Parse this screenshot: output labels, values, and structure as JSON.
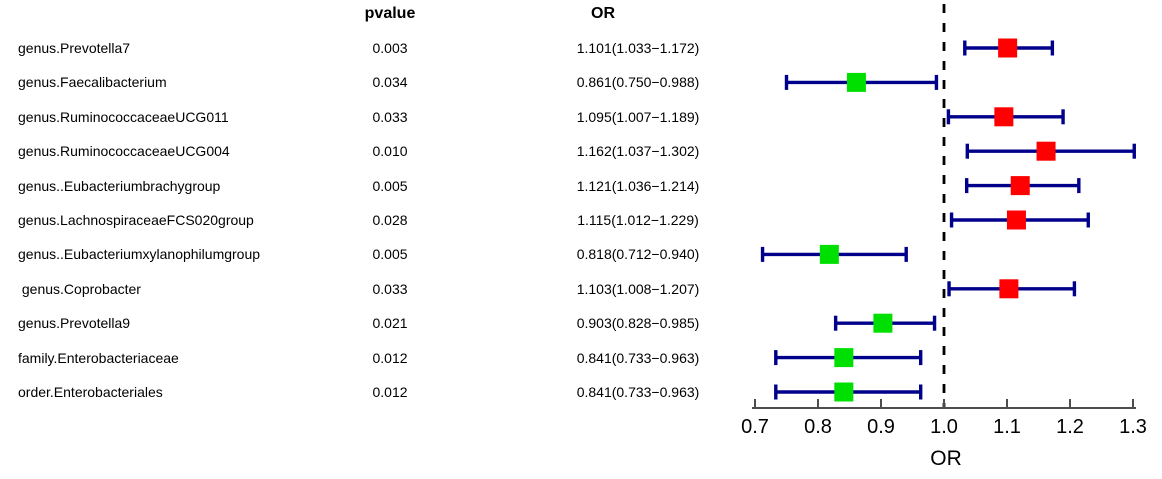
{
  "chart_data": {
    "type": "forest",
    "title": "",
    "column_headers": {
      "pvalue": "pvalue",
      "or": "OR"
    },
    "xlabel": "OR",
    "xlim": [
      0.7,
      1.3
    ],
    "xticks": [
      "0.7",
      "0.8",
      "0.9",
      "1.0",
      "1.1",
      "1.2",
      "1.3"
    ],
    "reference_line": 1.0,
    "grid": false,
    "legend_position": "none",
    "rows": [
      {
        "label": "genus.Prevotella7",
        "pvalue": "0.003",
        "or_text": "1.101(1.033−1.172)",
        "or": 1.101,
        "ci_low": 1.033,
        "ci_high": 1.172,
        "direction": "risk"
      },
      {
        "label": "genus.Faecalibacterium",
        "pvalue": "0.034",
        "or_text": "0.861(0.750−0.988)",
        "or": 0.861,
        "ci_low": 0.75,
        "ci_high": 0.988,
        "direction": "protective"
      },
      {
        "label": "genus.RuminococcaceaeUCG011",
        "pvalue": "0.033",
        "or_text": "1.095(1.007−1.189)",
        "or": 1.095,
        "ci_low": 1.007,
        "ci_high": 1.189,
        "direction": "risk"
      },
      {
        "label": "genus.RuminococcaceaeUCG004",
        "pvalue": "0.010",
        "or_text": "1.162(1.037−1.302)",
        "or": 1.162,
        "ci_low": 1.037,
        "ci_high": 1.302,
        "direction": "risk"
      },
      {
        "label": "genus..Eubacteriumbrachygroup",
        "pvalue": "0.005",
        "or_text": "1.121(1.036−1.214)",
        "or": 1.121,
        "ci_low": 1.036,
        "ci_high": 1.214,
        "direction": "risk"
      },
      {
        "label": "genus.LachnospiraceaeFCS020group",
        "pvalue": "0.028",
        "or_text": "1.115(1.012−1.229)",
        "or": 1.115,
        "ci_low": 1.012,
        "ci_high": 1.229,
        "direction": "risk"
      },
      {
        "label": "genus..Eubacteriumxylanophilumgroup",
        "pvalue": "0.005",
        "or_text": "0.818(0.712−0.940)",
        "or": 0.818,
        "ci_low": 0.712,
        "ci_high": 0.94,
        "direction": "protective"
      },
      {
        "label": " genus.Coprobacter",
        "pvalue": "0.033",
        "or_text": "1.103(1.008−1.207)",
        "or": 1.103,
        "ci_low": 1.008,
        "ci_high": 1.207,
        "direction": "risk"
      },
      {
        "label": "genus.Prevotella9",
        "pvalue": "0.021",
        "or_text": "0.903(0.828−0.985)",
        "or": 0.903,
        "ci_low": 0.828,
        "ci_high": 0.985,
        "direction": "protective"
      },
      {
        "label": "family.Enterobacteriaceae",
        "pvalue": "0.012",
        "or_text": "0.841(0.733−0.963)",
        "or": 0.841,
        "ci_low": 0.733,
        "ci_high": 0.963,
        "direction": "protective"
      },
      {
        "label": "order.Enterobacteriales",
        "pvalue": "0.012",
        "or_text": "0.841(0.733−0.963)",
        "or": 0.841,
        "ci_low": 0.733,
        "ci_high": 0.963,
        "direction": "protective"
      }
    ],
    "colors": {
      "risk_point": "#ff0000",
      "protective_point": "#00e000",
      "ci_bar": "#00008b",
      "reference_line": "#000000",
      "axis_line": "#4d4d4d",
      "text": "#000000"
    }
  }
}
